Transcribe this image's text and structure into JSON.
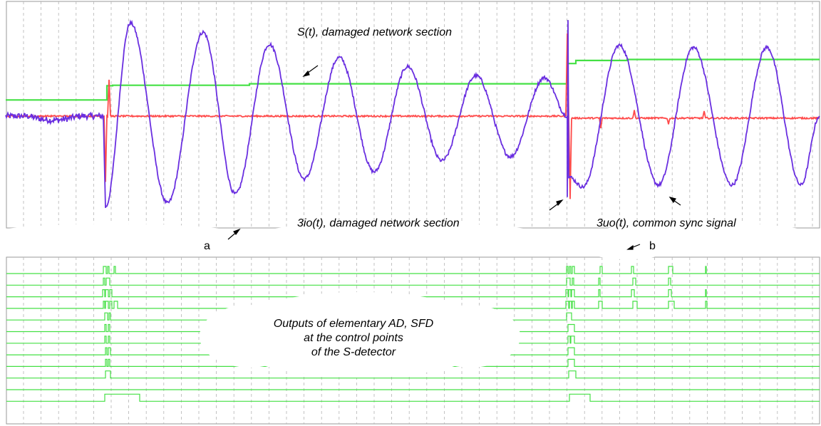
{
  "colors": {
    "s_signal": "#6a2fe0",
    "io_signal": "#ff4a4a",
    "uo_signal": "#44e044",
    "digital": "#44e044",
    "grid": "#b4b4b4",
    "frame": "#9a9a9a"
  },
  "labels": {
    "s": "S(t),  damaged network section",
    "io": "3io(t), damaged network section",
    "uo": "3uo(t), common sync signal",
    "a": "a",
    "b": "b",
    "outputs_line1": "Outputs of elementary AD, SFD",
    "outputs_line2": "at the control points",
    "outputs_line3": "of the S-detector"
  },
  "chart_data": [
    {
      "type": "line",
      "panel": "a/b",
      "title": "",
      "xlabel": "",
      "ylabel": "",
      "xlim": [
        0,
        1150
      ],
      "ylim": [
        -1,
        1
      ],
      "grid": true,
      "legend": "none",
      "series": [
        {
          "name": "S(t)",
          "color_key": "s_signal",
          "segments": [
            {
              "kind": "flat",
              "x0": 8,
              "x1": 145,
              "level": 0.0,
              "noise": 0.03
            },
            {
              "kind": "sine",
              "x0": 145,
              "x1": 796,
              "peaks": [
                [
                  148,
                  -0.9
                ],
                [
                  183,
                  0.92
                ],
                [
                  235,
                  -0.86
                ],
                [
                  285,
                  0.83
                ],
                [
                  330,
                  -0.77
                ],
                [
                  378,
                  0.71
                ],
                [
                  427,
                  -0.62
                ],
                [
                  476,
                  0.58
                ],
                [
                  525,
                  -0.55
                ],
                [
                  572,
                  0.49
                ],
                [
                  620,
                  -0.44
                ],
                [
                  668,
                  0.4
                ],
                [
                  716,
                  -0.4
                ],
                [
                  764,
                  0.38
                ],
                [
                  796,
                  0.0
                ]
              ]
            },
            {
              "kind": "spike",
              "x": 797,
              "y0": -0.8,
              "y1": 0.95
            },
            {
              "kind": "sine",
              "x0": 798,
              "x1": 1150,
              "peaks": [
                [
                  798,
                  -0.6
                ],
                [
                  818,
                  -0.7
                ],
                [
                  869,
                  0.7
                ],
                [
                  924,
                  -0.68
                ],
                [
                  973,
                  0.68
                ],
                [
                  1027,
                  -0.68
                ],
                [
                  1076,
                  0.68
                ],
                [
                  1124,
                  -0.68
                ],
                [
                  1150,
                  0.0
                ]
              ]
            }
          ]
        },
        {
          "name": "3io(t)",
          "color_key": "io_signal",
          "baseline": 0.0,
          "events": [
            {
              "x": 148,
              "y": -0.65
            },
            {
              "x": 153,
              "y": 0.36
            },
            {
              "x": 796,
              "y": 0.82
            },
            {
              "x": 800,
              "y": -0.82
            },
            {
              "x": 843,
              "y": -0.12
            },
            {
              "x": 890,
              "y": 0.06
            },
            {
              "x": 938,
              "y": -0.08
            },
            {
              "x": 988,
              "y": 0.05
            }
          ]
        },
        {
          "name": "3uo(t)",
          "color_key": "uo_signal",
          "steps": [
            {
              "x0": 8,
              "x1": 150,
              "y": 0.16
            },
            {
              "x0": 150,
              "x1": 158,
              "y": 0.3
            },
            {
              "x0": 158,
              "x1": 350,
              "y": 0.305
            },
            {
              "x0": 350,
              "x1": 796,
              "y": 0.32
            },
            {
              "x0": 796,
              "x1": 808,
              "y": 0.52
            },
            {
              "x0": 808,
              "x1": 880,
              "y": 0.55
            },
            {
              "x0": 880,
              "x1": 1150,
              "y": 0.56
            }
          ]
        }
      ]
    },
    {
      "type": "line",
      "panel": "digital",
      "title": "",
      "xlabel": "",
      "ylabel": "",
      "grid": true,
      "legend": "none",
      "channels": [
        {
          "pulses": [
            [
              145,
              149
            ],
            [
              151,
              153
            ],
            [
              160,
              162
            ],
            [
              795,
              797
            ],
            [
              799,
              801
            ],
            [
              803,
              806
            ],
            [
              842,
              845
            ],
            [
              886,
              889
            ],
            [
              938,
              944
            ],
            [
              990,
              991
            ]
          ]
        },
        {
          "pulses": [
            [
              145,
              147
            ],
            [
              149,
              154
            ],
            [
              795,
              800
            ],
            [
              803,
              805
            ],
            [
              840,
              842
            ],
            [
              888,
              892
            ],
            [
              938,
              941
            ]
          ]
        },
        {
          "pulses": [
            [
              144,
              147
            ],
            [
              148,
              152
            ],
            [
              154,
              157
            ],
            [
              794,
              797
            ],
            [
              798,
              801
            ],
            [
              802,
              806
            ],
            [
              840,
              842
            ],
            [
              886,
              890
            ],
            [
              938,
              942
            ],
            [
              990,
              991
            ]
          ]
        },
        {
          "pulses": [
            [
              145,
              147
            ],
            [
              148,
              152
            ],
            [
              154,
              157
            ],
            [
              160,
              165
            ],
            [
              794,
              798
            ],
            [
              799,
              802
            ],
            [
              803,
              806
            ],
            [
              840,
              845
            ],
            [
              888,
              894
            ],
            [
              938,
              946
            ],
            [
              990,
              992
            ]
          ]
        },
        {
          "pulses": [
            [
              147,
              151
            ],
            [
              153,
              155
            ],
            [
              795,
              802
            ]
          ]
        },
        {
          "pulses": [
            [
              147,
              149
            ],
            [
              152,
              154
            ],
            [
              797,
              806
            ]
          ]
        },
        {
          "pulses": [
            [
              147,
              149
            ],
            [
              152,
              154
            ],
            [
              797,
              800
            ],
            [
              801,
              806
            ]
          ]
        },
        {
          "pulses": [
            [
              148,
              150
            ],
            [
              152,
              155
            ],
            [
              797,
              806
            ]
          ]
        },
        {
          "pulses": [
            [
              148,
              150
            ],
            [
              152,
              154
            ],
            [
              797,
              806
            ]
          ]
        },
        {
          "pulses": [
            [
              148,
              155
            ],
            [
              798,
              808
            ]
          ]
        },
        {
          "pulses": []
        },
        {
          "pulses": [
            [
              147,
              196
            ],
            [
              799,
              828
            ]
          ]
        }
      ]
    }
  ]
}
